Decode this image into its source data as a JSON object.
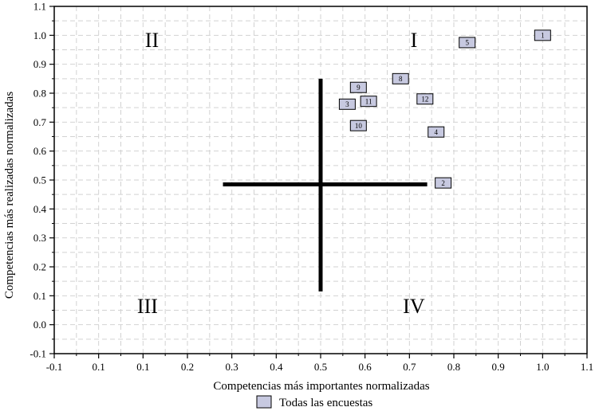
{
  "chart_data": {
    "type": "scatter",
    "xlabel": "Competencias más importantes normalizadas",
    "ylabel": "Competencias más realizadas normalizadas",
    "xlim": [
      -0.1,
      1.1
    ],
    "ylim": [
      -0.1,
      1.1
    ],
    "xticks": [
      "-0.1",
      "0.1",
      "0.1",
      "0.2",
      "0.3",
      "0.4",
      "0.5",
      "0.6",
      "0.7",
      "0.8",
      "0.9",
      "1.0",
      "1.1"
    ],
    "yticks": [
      "-0.1",
      "0.0",
      "0.1",
      "0.2",
      "0.3",
      "0.4",
      "0.5",
      "0.6",
      "0.7",
      "0.8",
      "0.9",
      "1.0",
      "1.1"
    ],
    "grid": true,
    "legend_position": "bottom-center",
    "series": [
      {
        "name": "Todas las encuestas",
        "marker_color": "#c7c9e0",
        "points": [
          {
            "label": "1",
            "x": 1.0,
            "y": 1.0
          },
          {
            "label": "5",
            "x": 0.83,
            "y": 0.975
          },
          {
            "label": "8",
            "x": 0.68,
            "y": 0.85
          },
          {
            "label": "9",
            "x": 0.585,
            "y": 0.82
          },
          {
            "label": "12",
            "x": 0.735,
            "y": 0.78
          },
          {
            "label": "11",
            "x": 0.608,
            "y": 0.772
          },
          {
            "label": "3",
            "x": 0.56,
            "y": 0.762
          },
          {
            "label": "10",
            "x": 0.585,
            "y": 0.688
          },
          {
            "label": "4",
            "x": 0.76,
            "y": 0.666
          },
          {
            "label": "2",
            "x": 0.776,
            "y": 0.49
          }
        ]
      }
    ],
    "quadrant_labels": [
      {
        "text": "I",
        "x": 0.71,
        "y": 0.985
      },
      {
        "text": "II",
        "x": 0.12,
        "y": 0.985
      },
      {
        "text": "III",
        "x": 0.11,
        "y": 0.065
      },
      {
        "text": "IV",
        "x": 0.71,
        "y": 0.065
      }
    ],
    "crosshair": {
      "horizontal": {
        "y": 0.485,
        "x_from": 0.28,
        "x_to": 0.74
      },
      "vertical": {
        "x": 0.5,
        "y_from": 0.115,
        "y_to": 0.85
      }
    }
  },
  "colors": {
    "grid": "#d2d2d2",
    "axis": "#000000",
    "marker_fill": "#c7c9e0",
    "marker_stroke": "#000000"
  }
}
